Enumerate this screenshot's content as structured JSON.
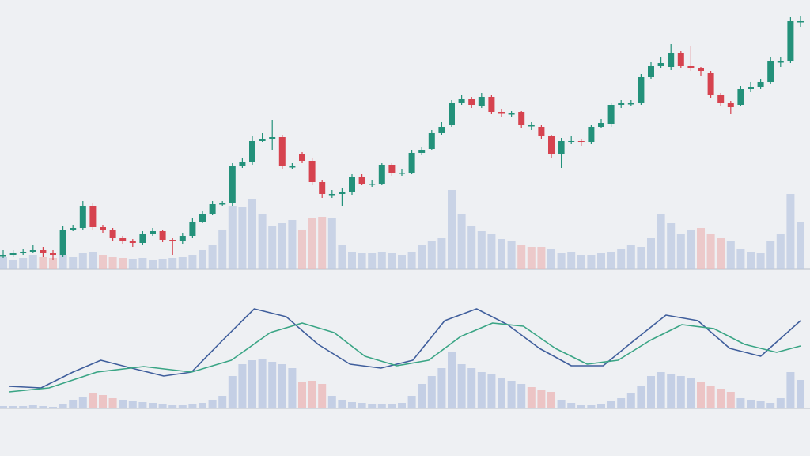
{
  "chart_data": [
    {
      "type": "candlestick",
      "ylim": [
        0,
        340
      ],
      "volume_ylim": [
        0,
        340
      ],
      "up_color": "#23917a",
      "down_color": "#d6434f",
      "open": [
        18,
        18,
        20,
        22,
        24,
        20,
        18,
        50,
        52,
        80,
        53,
        50,
        40,
        35,
        33,
        45,
        48,
        37,
        35,
        42,
        60,
        70,
        82,
        83,
        130,
        135,
        162,
        165,
        167,
        130,
        145,
        137,
        110,
        95,
        95,
        97,
        117,
        108,
        108,
        132,
        122,
        122,
        147,
        152,
        172,
        182,
        210,
        215,
        206,
        218,
        198,
        197,
        198,
        182,
        180,
        168,
        145,
        162,
        162,
        160,
        180,
        183,
        207,
        210,
        210,
        243,
        257,
        256,
        273,
        257,
        254,
        248,
        220,
        210,
        208,
        228,
        230,
        236,
        263,
        263,
        313
      ],
      "close": [
        18,
        20,
        22,
        24,
        20,
        18,
        50,
        52,
        80,
        53,
        50,
        40,
        35,
        33,
        45,
        48,
        37,
        35,
        42,
        60,
        70,
        82,
        83,
        130,
        135,
        162,
        165,
        167,
        130,
        130,
        137,
        110,
        95,
        95,
        97,
        117,
        108,
        108,
        132,
        122,
        122,
        147,
        150,
        172,
        180,
        210,
        215,
        208,
        218,
        198,
        197,
        197,
        182,
        182,
        168,
        145,
        162,
        162,
        160,
        180,
        185,
        207,
        210,
        210,
        243,
        257,
        260,
        273,
        257,
        254,
        250,
        220,
        210,
        205,
        228,
        230,
        236,
        263,
        263,
        313,
        313
      ],
      "high": [
        24,
        24,
        26,
        30,
        28,
        24,
        54,
        56,
        86,
        84,
        56,
        52,
        42,
        38,
        48,
        52,
        50,
        40,
        46,
        64,
        74,
        86,
        86,
        134,
        140,
        168,
        172,
        188,
        170,
        134,
        148,
        140,
        112,
        100,
        102,
        120,
        120,
        112,
        134,
        134,
        126,
        150,
        154,
        176,
        186,
        214,
        220,
        218,
        222,
        220,
        202,
        200,
        200,
        186,
        182,
        170,
        166,
        168,
        164,
        182,
        190,
        210,
        214,
        214,
        246,
        262,
        268,
        284,
        276,
        282,
        256,
        250,
        222,
        212,
        232,
        236,
        240,
        268,
        268,
        318,
        320
      ],
      "low": [
        14,
        16,
        18,
        20,
        16,
        12,
        16,
        48,
        50,
        50,
        46,
        36,
        32,
        28,
        30,
        42,
        34,
        18,
        32,
        40,
        58,
        68,
        80,
        80,
        128,
        132,
        160,
        150,
        126,
        126,
        134,
        106,
        90,
        90,
        80,
        94,
        106,
        104,
        106,
        118,
        118,
        120,
        144,
        150,
        170,
        180,
        208,
        204,
        204,
        196,
        192,
        192,
        178,
        176,
        164,
        140,
        128,
        158,
        156,
        158,
        178,
        180,
        204,
        206,
        208,
        240,
        254,
        252,
        254,
        250,
        244,
        216,
        206,
        196,
        206,
        224,
        228,
        234,
        256,
        260,
        306
      ],
      "volume": [
        15,
        12,
        14,
        18,
        16,
        14,
        18,
        16,
        20,
        22,
        18,
        15,
        14,
        13,
        14,
        12,
        13,
        14,
        16,
        18,
        24,
        30,
        50,
        80,
        78,
        88,
        70,
        55,
        58,
        62,
        50,
        65,
        66,
        64,
        30,
        22,
        20,
        20,
        22,
        20,
        18,
        22,
        30,
        35,
        40,
        100,
        70,
        55,
        48,
        45,
        38,
        35,
        30,
        28,
        28,
        25,
        20,
        22,
        18,
        18,
        20,
        22,
        25,
        30,
        28,
        40,
        70,
        58,
        45,
        50,
        52,
        44,
        40,
        35,
        25,
        22,
        20,
        35,
        45,
        95,
        60
      ],
      "volume_colors": [
        "#bcc9e2",
        "#bcc9e2",
        "#bcc9e2",
        "#bcc9e2",
        "#ebbcbc",
        "#ebbcbc",
        "#bcc9e2",
        "#bcc9e2",
        "#bcc9e2",
        "#bcc9e2",
        "#ebbcbc",
        "#ebbcbc",
        "#ebbcbc",
        "#bcc9e2",
        "#bcc9e2",
        "#bcc9e2",
        "#bcc9e2",
        "#bcc9e2",
        "#bcc9e2",
        "#bcc9e2",
        "#bcc9e2",
        "#bcc9e2",
        "#bcc9e2",
        "#bcc9e2",
        "#bcc9e2",
        "#bcc9e2",
        "#bcc9e2",
        "#bcc9e2",
        "#bcc9e2",
        "#bcc9e2",
        "#ebbcbc",
        "#ebbcbc",
        "#ebbcbc",
        "#bcc9e2",
        "#bcc9e2",
        "#bcc9e2",
        "#bcc9e2",
        "#bcc9e2",
        "#bcc9e2",
        "#bcc9e2",
        "#bcc9e2",
        "#bcc9e2",
        "#bcc9e2",
        "#bcc9e2",
        "#bcc9e2",
        "#bcc9e2",
        "#bcc9e2",
        "#bcc9e2",
        "#bcc9e2",
        "#bcc9e2",
        "#bcc9e2",
        "#bcc9e2",
        "#ebbcbc",
        "#ebbcbc",
        "#ebbcbc",
        "#bcc9e2",
        "#bcc9e2",
        "#bcc9e2",
        "#bcc9e2",
        "#bcc9e2",
        "#bcc9e2",
        "#bcc9e2",
        "#bcc9e2",
        "#bcc9e2",
        "#bcc9e2",
        "#bcc9e2",
        "#bcc9e2",
        "#bcc9e2",
        "#bcc9e2",
        "#bcc9e2",
        "#ebbcbc",
        "#ebbcbc",
        "#ebbcbc",
        "#bcc9e2",
        "#bcc9e2",
        "#bcc9e2",
        "#bcc9e2",
        "#bcc9e2",
        "#bcc9e2",
        "#bcc9e2",
        "#bcc9e2"
      ]
    },
    {
      "type": "macd",
      "ylim": [
        0,
        130
      ],
      "xlim": [
        0,
        80
      ],
      "histogram": [
        2,
        2,
        2,
        3,
        2,
        1,
        5,
        10,
        14,
        18,
        16,
        12,
        10,
        8,
        7,
        6,
        5,
        4,
        4,
        5,
        6,
        10,
        15,
        40,
        55,
        60,
        62,
        58,
        55,
        50,
        32,
        34,
        30,
        15,
        10,
        7,
        6,
        5,
        5,
        5,
        6,
        15,
        30,
        40,
        50,
        70,
        55,
        50,
        45,
        42,
        38,
        34,
        30,
        26,
        22,
        20,
        10,
        6,
        4,
        4,
        5,
        8,
        12,
        18,
        28,
        40,
        45,
        42,
        40,
        38,
        32,
        28,
        24,
        20,
        12,
        10,
        8,
        6,
        12,
        45,
        35
      ],
      "histogram_colors": [
        "#bcc9e2",
        "#bcc9e2",
        "#bcc9e2",
        "#bcc9e2",
        "#bcc9e2",
        "#bcc9e2",
        "#bcc9e2",
        "#bcc9e2",
        "#bcc9e2",
        "#ebbcbc",
        "#ebbcbc",
        "#ebbcbc",
        "#bcc9e2",
        "#bcc9e2",
        "#bcc9e2",
        "#bcc9e2",
        "#bcc9e2",
        "#bcc9e2",
        "#bcc9e2",
        "#bcc9e2",
        "#bcc9e2",
        "#bcc9e2",
        "#bcc9e2",
        "#bcc9e2",
        "#bcc9e2",
        "#bcc9e2",
        "#bcc9e2",
        "#bcc9e2",
        "#bcc9e2",
        "#bcc9e2",
        "#ebbcbc",
        "#ebbcbc",
        "#ebbcbc",
        "#bcc9e2",
        "#bcc9e2",
        "#bcc9e2",
        "#bcc9e2",
        "#bcc9e2",
        "#bcc9e2",
        "#bcc9e2",
        "#bcc9e2",
        "#bcc9e2",
        "#bcc9e2",
        "#bcc9e2",
        "#bcc9e2",
        "#bcc9e2",
        "#bcc9e2",
        "#bcc9e2",
        "#bcc9e2",
        "#bcc9e2",
        "#bcc9e2",
        "#bcc9e2",
        "#bcc9e2",
        "#ebbcbc",
        "#ebbcbc",
        "#ebbcbc",
        "#bcc9e2",
        "#bcc9e2",
        "#bcc9e2",
        "#bcc9e2",
        "#bcc9e2",
        "#bcc9e2",
        "#bcc9e2",
        "#bcc9e2",
        "#bcc9e2",
        "#bcc9e2",
        "#bcc9e2",
        "#bcc9e2",
        "#bcc9e2",
        "#bcc9e2",
        "#ebbcbc",
        "#ebbcbc",
        "#ebbcbc",
        "#ebbcbc",
        "#bcc9e2",
        "#bcc9e2",
        "#bcc9e2",
        "#bcc9e2",
        "#bcc9e2",
        "#bcc9e2",
        "#bcc9e2"
      ],
      "series": [
        {
          "color": "#3f5e9c",
          "x": [
            0.6,
            3.8,
            7,
            9.8,
            12.9,
            16.1,
            18.9,
            22,
            25.2,
            28.4,
            31.6,
            34.8,
            37.9,
            41.1,
            44.3,
            47.5,
            50.6,
            53.8,
            57,
            60.2,
            63.3,
            66.5,
            69.7,
            72.9,
            76,
            80
          ],
          "values": [
            27,
            25,
            45,
            60,
            50,
            40,
            45,
            85,
            125,
            115,
            80,
            55,
            50,
            60,
            110,
            125,
            105,
            75,
            53,
            53,
            85,
            117,
            110,
            75,
            65,
            110
          ]
        },
        {
          "color": "#3aa585",
          "x": [
            0.6,
            4.6,
            9.4,
            14.1,
            18.9,
            22.9,
            26.8,
            30,
            33.2,
            36.3,
            39.5,
            42.7,
            45.9,
            49.1,
            52.2,
            55.4,
            58.6,
            61.7,
            64.9,
            68.1,
            71.3,
            74.4,
            77.6,
            80
          ],
          "values": [
            20,
            25,
            45,
            52,
            45,
            60,
            95,
            107,
            95,
            65,
            53,
            60,
            90,
            107,
            103,
            75,
            55,
            60,
            85,
            105,
            100,
            80,
            70,
            78
          ]
        }
      ]
    }
  ]
}
